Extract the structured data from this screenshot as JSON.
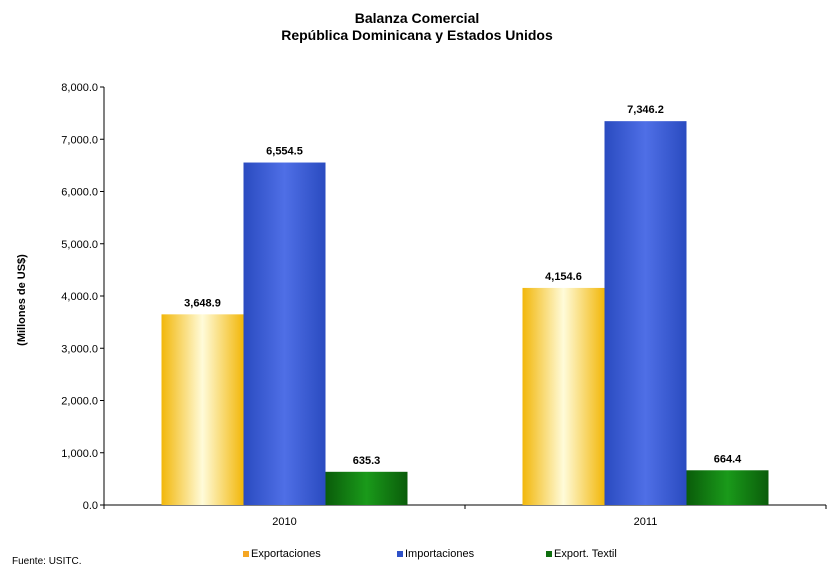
{
  "chart_data": {
    "type": "bar",
    "title": "Balanza Comercial",
    "subtitle": "República Dominicana  y Estados  Unidos",
    "xlabel": "",
    "ylabel": "(Millones de US$)",
    "ylim": [
      0,
      8000
    ],
    "y_ticks": [
      "0.0",
      "1,000.0",
      "2,000.0",
      "3,000.0",
      "4,000.0",
      "5,000.0",
      "6,000.0",
      "7,000.0",
      "8,000.0"
    ],
    "categories": [
      "2010",
      "2011"
    ],
    "series": [
      {
        "name": "Exportaciones",
        "values": [
          3648.9,
          4154.6
        ],
        "labels": [
          "3,648.9",
          "4,154.6"
        ],
        "color": "#f7c21a"
      },
      {
        "name": "Importaciones",
        "values": [
          6554.5,
          7346.2
        ],
        "labels": [
          "6,554.5",
          "7,346.2"
        ],
        "color": "#2f52c8"
      },
      {
        "name": "Export. Textil",
        "values": [
          635.3,
          664.4
        ],
        "labels": [
          "635.3",
          "664.4"
        ],
        "color": "#0e6e0e"
      }
    ],
    "legend_position": "bottom",
    "grid": false
  },
  "source": "Fuente: USITC."
}
